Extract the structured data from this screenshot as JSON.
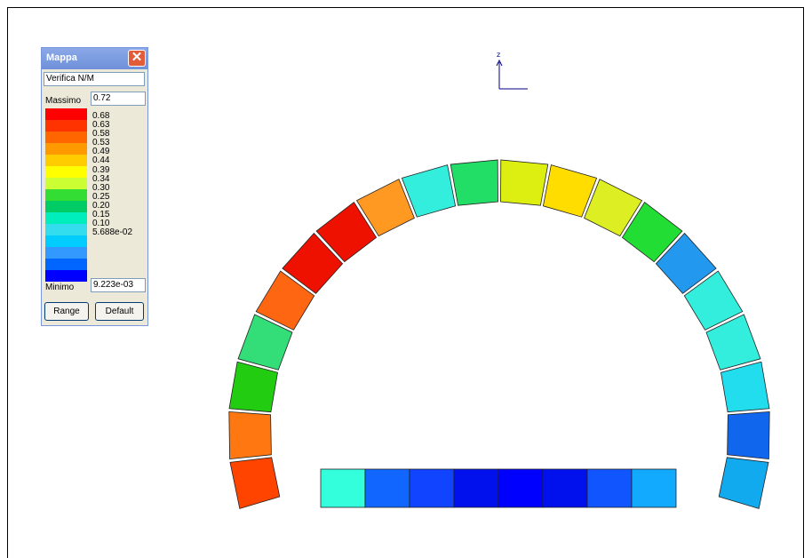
{
  "panel": {
    "title": "Mappa",
    "field_label": "Verifica N/M",
    "max_label": "Massimo",
    "max_value": "0.72",
    "min_label": "Minimo",
    "min_value": "9.223e-03",
    "range_button": "Range",
    "default_button": "Default",
    "close_icon": "close-icon",
    "ramp_colors": [
      "#ff0000",
      "#ff3300",
      "#ff6600",
      "#ff9900",
      "#ffcc00",
      "#ffff00",
      "#ccff33",
      "#33dd33",
      "#00cc66",
      "#00eebb",
      "#33ddee",
      "#00ccff",
      "#3399ff",
      "#0066ff",
      "#0000ff"
    ],
    "tick_labels": [
      "0.68",
      "0.63",
      "0.58",
      "0.53",
      "0.49",
      "0.44",
      "0.39",
      "0.34",
      "0.30",
      "0.25",
      "0.20",
      "0.15",
      "0.10",
      "5.688e-02"
    ]
  },
  "axis": {
    "label": "z"
  },
  "arch_colors": [
    "#ff4400",
    "#ff7711",
    "#22cc11",
    "#33dd77",
    "#ff6611",
    "#ee1100",
    "#ee1100",
    "#ff9922",
    "#33eedd",
    "#22dd66",
    "#ddee11",
    "#ffdd00",
    "#ddee22",
    "#22dd33",
    "#2299ee",
    "#33eedd",
    "#33eedd",
    "#22ddee",
    "#1166ee",
    "#11aaee"
  ],
  "base_colors": [
    "#33ffdd",
    "#1166ff",
    "#1144ff",
    "#0011ee",
    "#0000ff",
    "#0011ee",
    "#1155ff",
    "#11aaff"
  ]
}
